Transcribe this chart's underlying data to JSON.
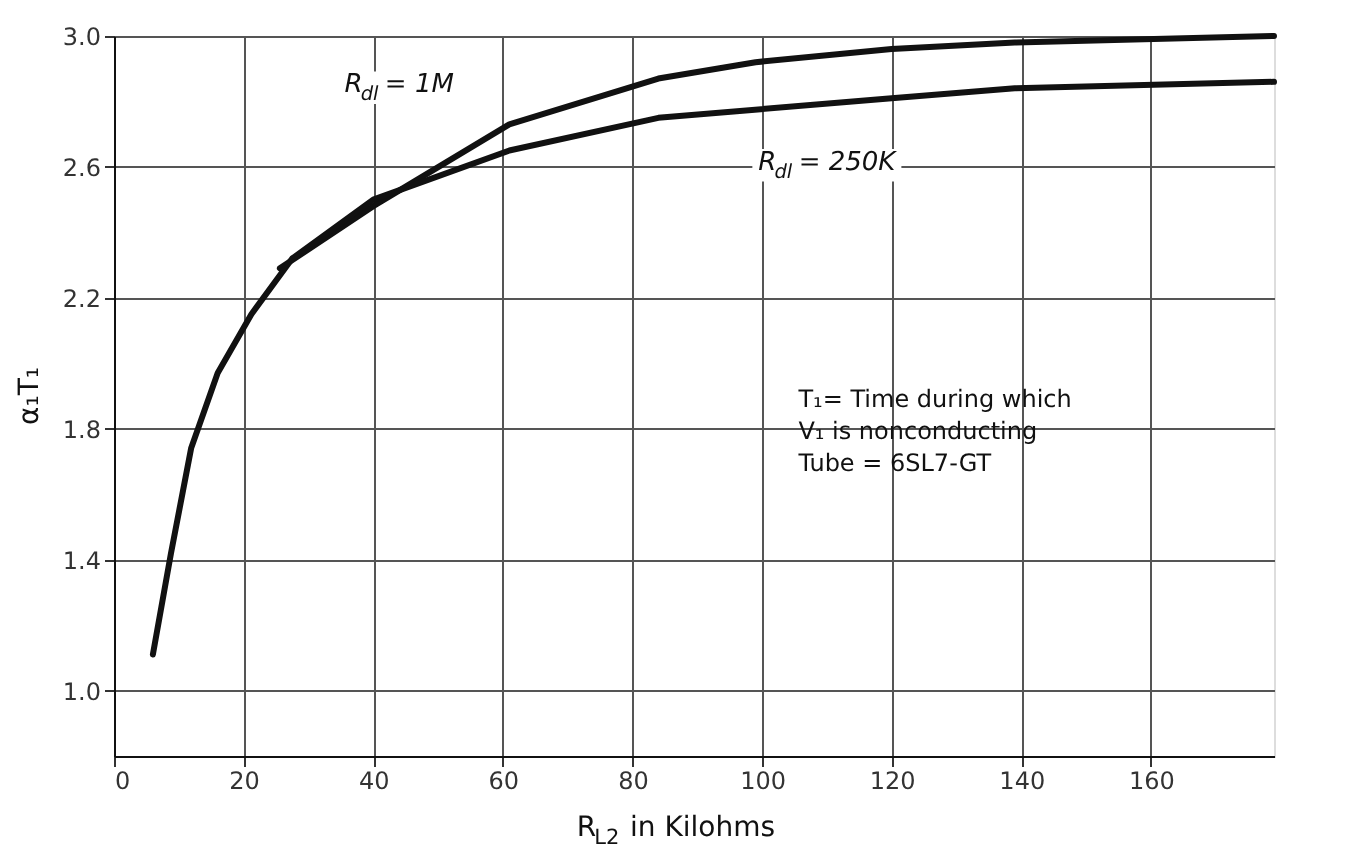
{
  "chart_data": {
    "type": "line",
    "xlabel": "R$_{L2}$ in Kilohms",
    "ylabel": "α₁T₁",
    "xlim": [
      0,
      179
    ],
    "xticks": [
      0,
      20,
      40,
      60,
      80,
      100,
      120,
      140,
      160
    ],
    "ylim": [
      0.8,
      3.0
    ],
    "yticks": [
      {
        "value": 1.0,
        "label": "1.0"
      },
      {
        "value": 1.4,
        "label": "1.4"
      },
      {
        "value": 1.8,
        "label": "1.8"
      },
      {
        "value": 2.2,
        "label": "2.2"
      },
      {
        "value": 2.6,
        "label": "2.6"
      },
      {
        "value": 3.0,
        "label": "3.0"
      }
    ],
    "grid": true,
    "marker": "none",
    "line_style": "solid",
    "series": [
      {
        "name": "R$_{dl}$= 1M",
        "color": "#111111",
        "x": [
          25.6,
          40,
          61,
          84,
          99,
          120,
          139,
          179
        ],
        "values": [
          2.29,
          2.48,
          2.73,
          2.87,
          2.92,
          2.96,
          2.98,
          3.0
        ]
      },
      {
        "name": "R$_{dl}$= 250K",
        "color": "#111111",
        "x": [
          6,
          8.8,
          11.9,
          16,
          21.2,
          27.5,
          40,
          61,
          84,
          120,
          139,
          179
        ],
        "values": [
          1.11,
          1.42,
          1.74,
          1.97,
          2.15,
          2.32,
          2.5,
          2.65,
          2.75,
          2.81,
          2.84,
          2.86
        ]
      }
    ],
    "annotations": [
      "T₁= Time during which\n     V₁ is nonconducting\nTube = 6SL7-GT"
    ]
  }
}
